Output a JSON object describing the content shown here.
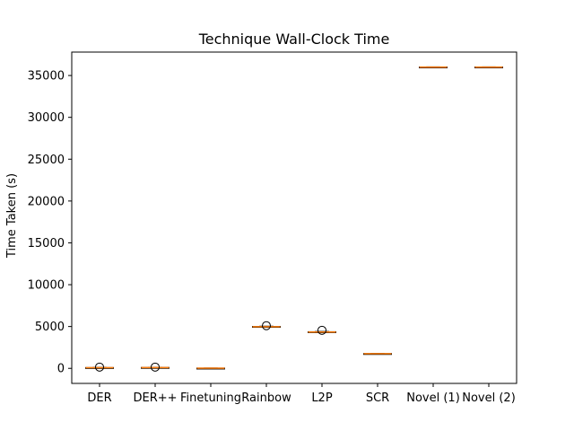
{
  "chart_data": {
    "type": "box",
    "title": "Technique Wall-Clock Time",
    "xlabel": "",
    "ylabel": "Time Taken (s)",
    "ylim": [
      -1800,
      37800
    ],
    "yticks": [
      0,
      5000,
      10000,
      15000,
      20000,
      25000,
      30000,
      35000
    ],
    "categories": [
      "DER",
      "DER++",
      "Finetuning",
      "Rainbow",
      "L2P",
      "SCR",
      "Novel (1)",
      "Novel (2)"
    ],
    "boxes": [
      {
        "median": 80,
        "q1": 70,
        "q3": 95,
        "whisker_low": 60,
        "whisker_high": 110,
        "outliers": [
          150
        ]
      },
      {
        "median": 95,
        "q1": 85,
        "q3": 110,
        "whisker_low": 75,
        "whisker_high": 130,
        "outliers": [
          150
        ]
      },
      {
        "median": 20,
        "q1": 10,
        "q3": 30,
        "whisker_low": 5,
        "whisker_high": 40,
        "outliers": []
      },
      {
        "median": 4980,
        "q1": 4950,
        "q3": 5010,
        "whisker_low": 4920,
        "whisker_high": 5040,
        "outliers": [
          5100
        ]
      },
      {
        "median": 4350,
        "q1": 4320,
        "q3": 4380,
        "whisker_low": 4290,
        "whisker_high": 4410,
        "outliers": [
          4550
        ]
      },
      {
        "median": 1750,
        "q1": 1730,
        "q3": 1770,
        "whisker_low": 1710,
        "whisker_high": 1790,
        "outliers": []
      },
      {
        "median": 36000,
        "q1": 35980,
        "q3": 36020,
        "whisker_low": 35960,
        "whisker_high": 36040,
        "outliers": []
      },
      {
        "median": 36000,
        "q1": 35980,
        "q3": 36020,
        "whisker_low": 35960,
        "whisker_high": 36040,
        "outliers": []
      }
    ],
    "colors": {
      "box": "#000000",
      "median": "#ff7f0e"
    },
    "grid": false,
    "legend": "none"
  }
}
